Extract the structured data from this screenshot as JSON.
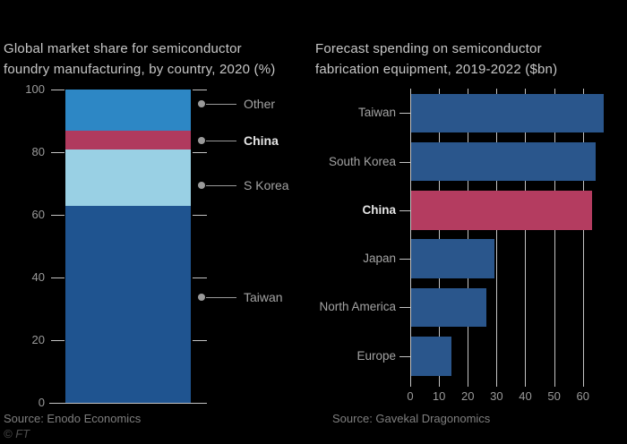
{
  "page": {
    "background": "#000000"
  },
  "footer": {
    "ft_mark": "© FT"
  },
  "chart_data": [
    {
      "type": "bar",
      "subtype": "stacked-column",
      "title": "Global market share for semiconductor foundry manufacturing, by country, 2020 (%)",
      "title_lines": [
        "Global market share for semiconductor",
        "foundry manufacturing, by country, 2020 (%)"
      ],
      "stack_order": "top-to-bottom",
      "categories": [
        "Other",
        "China",
        "S Korea",
        "Taiwan"
      ],
      "values": [
        13,
        6,
        18,
        63
      ],
      "colors": [
        "#2d87c5",
        "#b03a5e",
        "#99d0e4",
        "#1f5490"
      ],
      "bold_category": "China",
      "unit": "%",
      "ylim": [
        0,
        100
      ],
      "y_ticks": [
        100,
        80,
        60,
        40,
        20,
        0
      ],
      "grid": false,
      "legend_position": "right-annotations",
      "source": "Source: Enodo Economics"
    },
    {
      "type": "bar",
      "subtype": "horizontal",
      "title": "Forecast spending on semiconductor fabrication equipment, 2019-2022 ($bn)",
      "title_lines": [
        "Forecast spending on semiconductor",
        "fabrication equipment, 2019-2022 ($bn)"
      ],
      "categories": [
        "Taiwan",
        "South Korea",
        "China",
        "Japan",
        "North America",
        "Europe"
      ],
      "values": [
        67,
        64,
        63,
        29,
        26,
        14
      ],
      "colors": [
        "#2a568c",
        "#2a568c",
        "#b43c60",
        "#2a568c",
        "#2a568c",
        "#2a568c"
      ],
      "bold_category": "China",
      "unit": "$bn",
      "xlim": [
        0,
        67
      ],
      "x_ticks": [
        0,
        10,
        20,
        30,
        40,
        50,
        60
      ],
      "grid": true,
      "source": "Source: Gavekal Dragonomics"
    }
  ]
}
